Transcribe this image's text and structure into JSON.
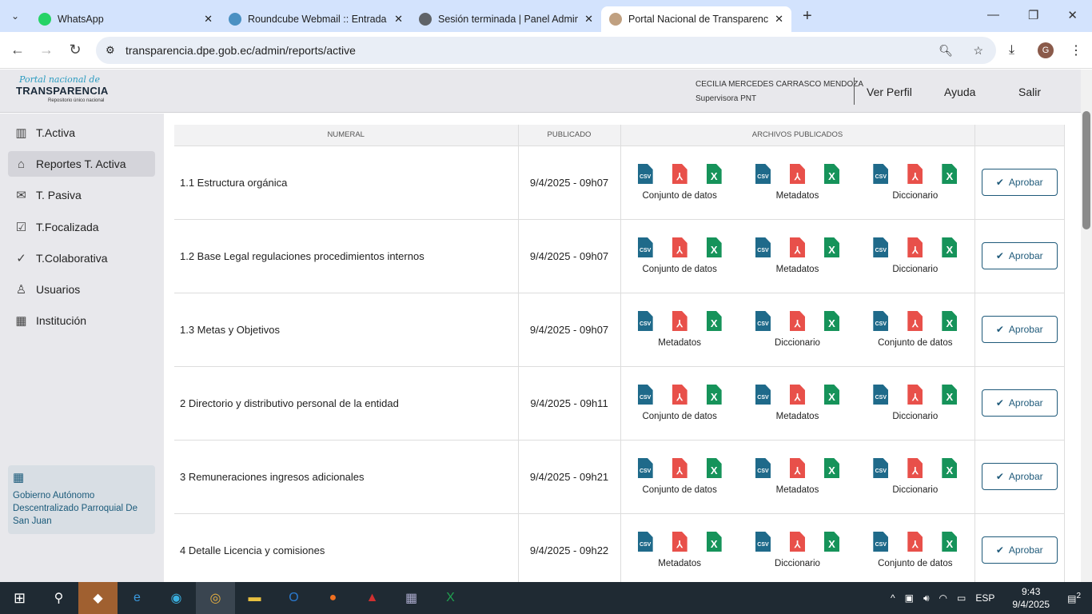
{
  "browser": {
    "tabs": [
      {
        "title": "WhatsApp",
        "favicon": "whatsapp-icon",
        "color": "#25d366"
      },
      {
        "title": "Roundcube Webmail :: Entrada",
        "favicon": "roundcube-icon",
        "color": "#4a90c2"
      },
      {
        "title": "Sesión terminada | Panel Admin",
        "favicon": "globe-icon",
        "color": "#5f6368"
      },
      {
        "title": "Portal Nacional de Transparencia",
        "favicon": "portal-icon",
        "color": "#c0a080"
      }
    ],
    "url": "transparencia.dpe.gob.ec/admin/reports/active",
    "profile_initial": "G"
  },
  "header": {
    "logo_script": "Portal nacional de",
    "logo_main": "TRANSPARENCIA",
    "logo_sub": "Repositorio único nacional",
    "user_name": "CECILIA MERCEDES CARRASCO MENDOZA",
    "user_role": "Supervisora PNT",
    "links": [
      "Ver Perfil",
      "Ayuda",
      "Salir"
    ]
  },
  "sidebar": {
    "items": [
      {
        "label": "T.Activa",
        "icon": "chart-icon"
      },
      {
        "label": "Reportes T. Activa",
        "icon": "home-icon",
        "active": true
      },
      {
        "label": "T. Pasiva",
        "icon": "mail-icon"
      },
      {
        "label": "T.Focalizada",
        "icon": "checkbox-icon"
      },
      {
        "label": "T.Colaborativa",
        "icon": "check-icon"
      },
      {
        "label": "Usuarios",
        "icon": "user-icon"
      },
      {
        "label": "Institución",
        "icon": "building-icon"
      }
    ],
    "institution": "Gobierno Autónomo Descentralizado Parroquial De San Juan"
  },
  "table": {
    "headers": [
      "NUMERAL",
      "PUBLICADO",
      "ARCHIVOS PUBLICADOS",
      ""
    ],
    "approve_label": "Aprobar",
    "file_types": [
      "CSV",
      "PDF",
      "XLS"
    ],
    "rows": [
      {
        "numeral": "1.1 Estructura orgánica",
        "publicado": "9/4/2025 - 09h07",
        "groups": [
          "Conjunto de datos",
          "Metadatos",
          "Diccionario"
        ]
      },
      {
        "numeral": "1.2 Base Legal regulaciones procedimientos internos",
        "publicado": "9/4/2025 - 09h07",
        "groups": [
          "Conjunto de datos",
          "Metadatos",
          "Diccionario"
        ]
      },
      {
        "numeral": "1.3 Metas y Objetivos",
        "publicado": "9/4/2025 - 09h07",
        "groups": [
          "Metadatos",
          "Diccionario",
          "Conjunto de datos"
        ]
      },
      {
        "numeral": "2 Directorio y distributivo personal de la entidad",
        "publicado": "9/4/2025 - 09h11",
        "groups": [
          "Conjunto de datos",
          "Metadatos",
          "Diccionario"
        ]
      },
      {
        "numeral": "3 Remuneraciones ingresos adicionales",
        "publicado": "9/4/2025 - 09h21",
        "groups": [
          "Conjunto de datos",
          "Metadatos",
          "Diccionario"
        ]
      },
      {
        "numeral": "4 Detalle Licencia y comisiones",
        "publicado": "9/4/2025 - 09h22",
        "groups": [
          "Metadatos",
          "Diccionario",
          "Conjunto de datos"
        ]
      }
    ]
  },
  "taskbar": {
    "language": "ESP",
    "time": "9:43",
    "date": "9/4/2025",
    "notifications": "2"
  }
}
